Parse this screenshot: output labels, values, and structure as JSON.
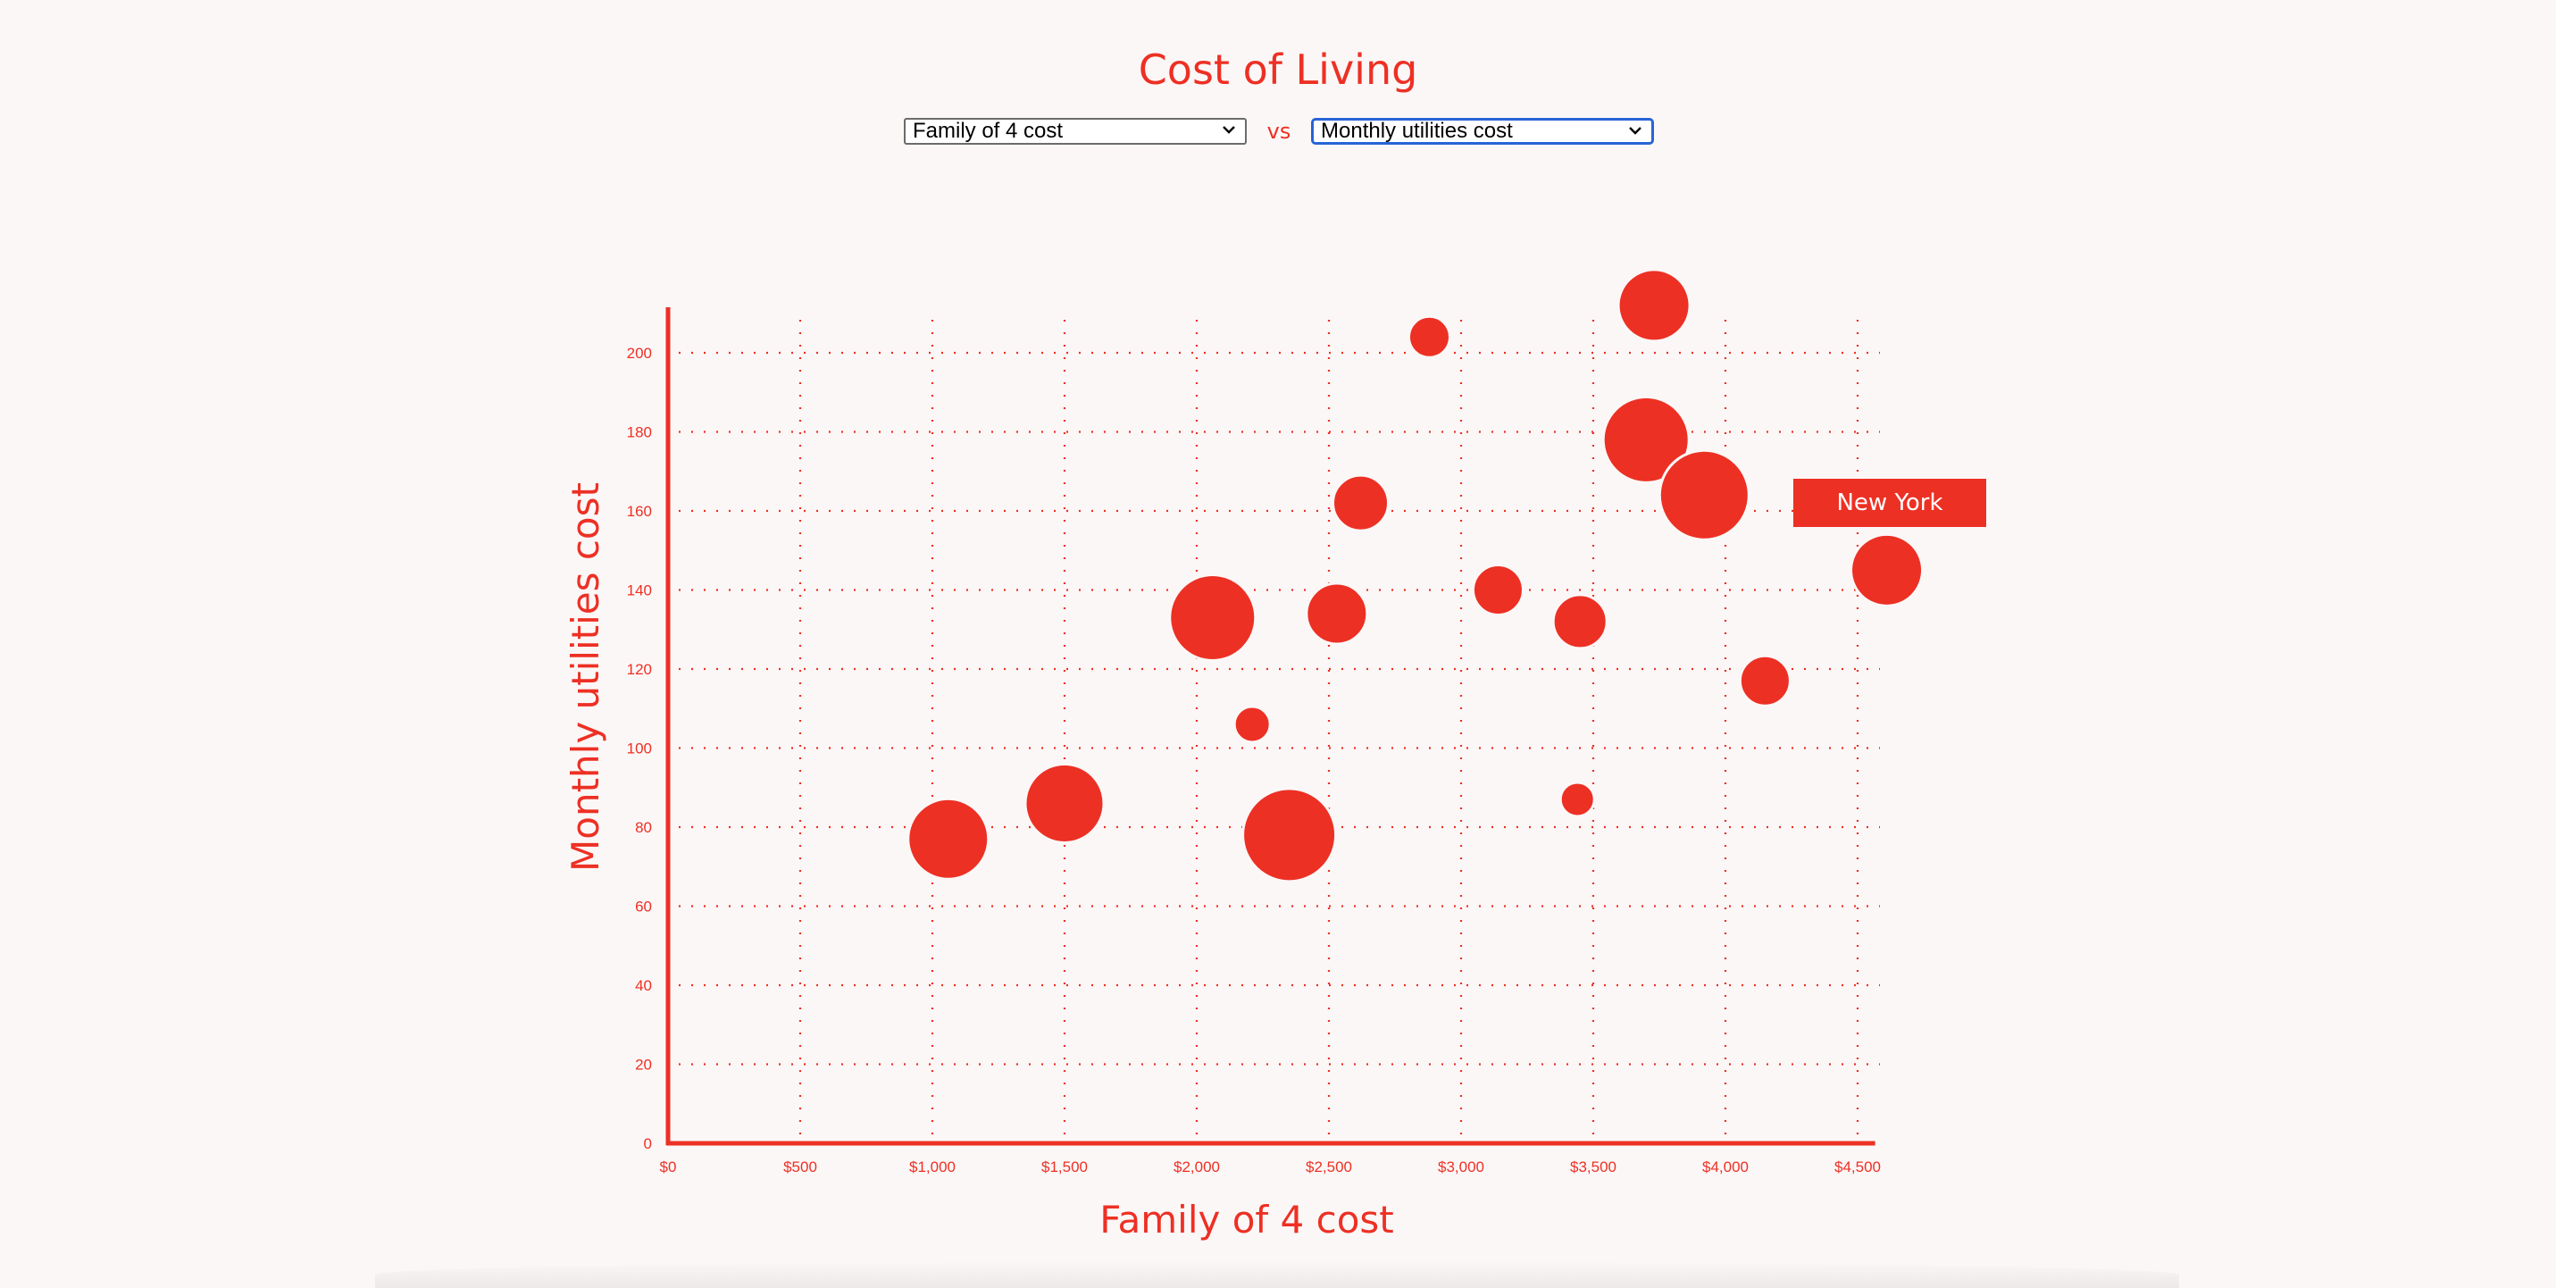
{
  "title": "Cost of Living",
  "controls": {
    "x_select_value": "Family of 4 cost",
    "vs_label": "vs",
    "y_select_value": "Monthly utilities cost"
  },
  "tooltip": {
    "label": "New York"
  },
  "colors": {
    "accent": "#ed3024",
    "background": "#fcf7f7"
  },
  "chart_data": {
    "type": "scatter",
    "xlabel": "Family of 4 cost",
    "ylabel": "Monthly utilities cost",
    "xlim": [
      0,
      4600
    ],
    "ylim": [
      0,
      212
    ],
    "x_ticks": [
      "$0",
      "$500",
      "$1,000",
      "$1,500",
      "$2,000",
      "$2,500",
      "$3,000",
      "$3,500",
      "$4,000",
      "$4,500"
    ],
    "x_tick_values": [
      0,
      500,
      1000,
      1500,
      2000,
      2500,
      3000,
      3500,
      4000,
      4500
    ],
    "y_ticks": [
      "0",
      "20",
      "40",
      "60",
      "80",
      "100",
      "120",
      "140",
      "160",
      "180",
      "200"
    ],
    "y_tick_values": [
      0,
      20,
      40,
      60,
      80,
      100,
      120,
      140,
      160,
      180,
      200
    ],
    "grid": true,
    "points": [
      {
        "x": 1060,
        "y": 77,
        "size": 45
      },
      {
        "x": 1500,
        "y": 86,
        "size": 44
      },
      {
        "x": 2060,
        "y": 133,
        "size": 48
      },
      {
        "x": 2210,
        "y": 106,
        "size": 20
      },
      {
        "x": 2350,
        "y": 78,
        "size": 52
      },
      {
        "x": 2530,
        "y": 134,
        "size": 34
      },
      {
        "x": 2620,
        "y": 162,
        "size": 31
      },
      {
        "x": 2880,
        "y": 204,
        "size": 23
      },
      {
        "x": 3140,
        "y": 140,
        "size": 28
      },
      {
        "x": 3440,
        "y": 87,
        "size": 19
      },
      {
        "x": 3450,
        "y": 132,
        "size": 30
      },
      {
        "x": 3700,
        "y": 178,
        "size": 48
      },
      {
        "x": 3730,
        "y": 212,
        "size": 40
      },
      {
        "x": 3920,
        "y": 164,
        "size": 50
      },
      {
        "x": 4150,
        "y": 117,
        "size": 28
      },
      {
        "x": 4610,
        "y": 145,
        "size": 40,
        "name": "New York"
      }
    ]
  }
}
